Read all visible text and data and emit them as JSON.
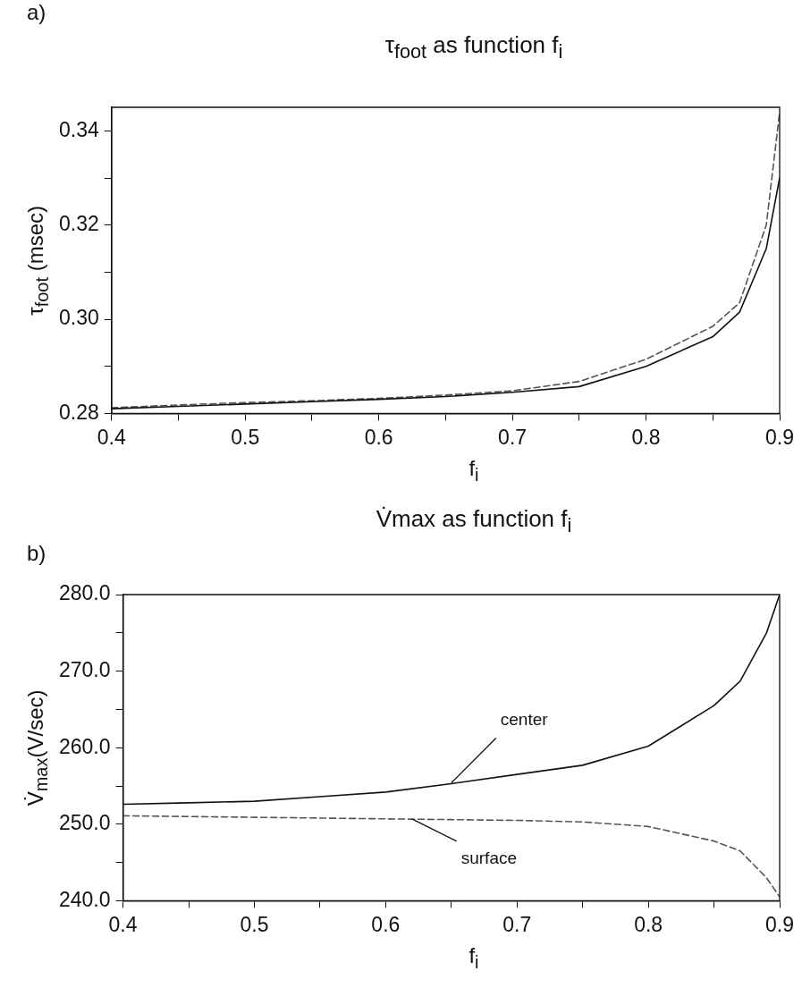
{
  "chart_data": [
    {
      "type": "line",
      "title": "τ$_{foot}$  as function f$_{i}$",
      "xlabel": "f$_{i}$",
      "ylabel": "τ$_{foot}$  (msec)",
      "annotations": [
        "a)"
      ],
      "x": [
        0.4,
        0.45,
        0.5,
        0.55,
        0.6,
        0.65,
        0.7,
        0.75,
        0.8,
        0.85,
        0.87,
        0.89,
        0.9
      ],
      "series": [
        {
          "color": "#111111",
          "line_style": "solid",
          "values": [
            0.281,
            0.2815,
            0.282,
            0.2825,
            0.283,
            0.2836,
            0.2845,
            0.2857,
            0.29,
            0.2963,
            0.3015,
            0.315,
            0.33
          ]
        },
        {
          "color": "#555555",
          "line_style": "dashed",
          "values": [
            0.2812,
            0.2818,
            0.2823,
            0.2827,
            0.2832,
            0.2839,
            0.2848,
            0.2868,
            0.2915,
            0.2985,
            0.3035,
            0.32,
            0.344
          ]
        }
      ],
      "xlim": [
        0.4,
        0.9
      ],
      "ylim": [
        0.28,
        0.345
      ],
      "xticks": [
        0.4,
        {
          "value": 0.45,
          "label": null
        },
        0.5,
        {
          "value": 0.55,
          "label": null
        },
        0.6,
        {
          "value": 0.65,
          "label": null
        },
        0.7,
        {
          "value": 0.75,
          "label": null
        },
        0.8,
        {
          "value": 0.85,
          "label": null
        },
        0.9
      ],
      "yticks": [
        0.28,
        {
          "value": 0.29,
          "label": null
        },
        {
          "value": 0.3,
          "label": "0.30"
        },
        {
          "value": 0.31,
          "label": null
        },
        0.32,
        {
          "value": 0.33,
          "label": null
        },
        0.34
      ],
      "grid": false,
      "legend": false,
      "marker": "none"
    },
    {
      "type": "line",
      "title": "V̇max as function f$_{i}$",
      "xlabel": "f$_{i}$",
      "ylabel": "V̇$_{max}$(V/sec)",
      "annotations": [
        "b)",
        {
          "text": "center",
          "x": 0.65,
          "y": 255.4
        },
        {
          "text": "surface",
          "x": 0.62,
          "y": 250.7
        }
      ],
      "x": [
        0.4,
        0.45,
        0.5,
        0.55,
        0.6,
        0.65,
        0.7,
        0.75,
        0.8,
        0.85,
        0.87,
        0.89,
        0.9
      ],
      "series": [
        {
          "color": "#111111",
          "line_style": "solid",
          "values": [
            252.6,
            252.8,
            253.0,
            253.6,
            254.2,
            255.3,
            256.5,
            257.7,
            260.2,
            265.5,
            268.7,
            275.0,
            280.0
          ]
        },
        {
          "color": "#555555",
          "line_style": "dashed",
          "values": [
            251.1,
            251.0,
            250.9,
            250.8,
            250.7,
            250.6,
            250.5,
            250.3,
            249.7,
            247.8,
            246.5,
            243.0,
            240.5
          ]
        }
      ],
      "xlim": [
        0.4,
        0.9
      ],
      "ylim": [
        240,
        280
      ],
      "xticks": [
        0.4,
        {
          "value": 0.45,
          "label": null
        },
        0.5,
        {
          "value": 0.55,
          "label": null
        },
        0.6,
        {
          "value": 0.65,
          "label": null
        },
        0.7,
        {
          "value": 0.75,
          "label": null
        },
        0.8,
        {
          "value": 0.85,
          "label": null
        },
        0.9
      ],
      "yticks": [
        {
          "value": 240,
          "label": "240.0"
        },
        {
          "value": 245,
          "label": null
        },
        {
          "value": 250,
          "label": "250.0"
        },
        {
          "value": 255,
          "label": null
        },
        {
          "value": 260,
          "label": "260.0"
        },
        {
          "value": 265,
          "label": null
        },
        {
          "value": 270,
          "label": "270.0"
        },
        {
          "value": 275,
          "label": null
        },
        {
          "value": 280,
          "label": "280.0"
        }
      ],
      "grid": false,
      "legend": false,
      "marker": "none"
    }
  ]
}
